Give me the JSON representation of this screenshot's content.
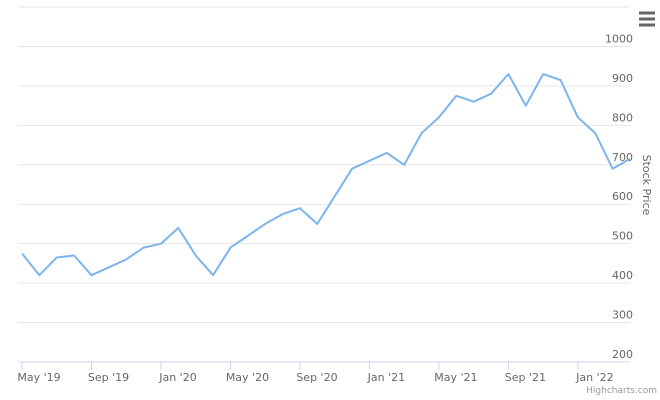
{
  "chart_data": {
    "type": "line",
    "y_axis_title": "Stock Price",
    "credits": "Highcharts.com",
    "x": [
      "2019-05",
      "2019-06",
      "2019-07",
      "2019-08",
      "2019-09",
      "2019-10",
      "2019-11",
      "2019-12",
      "2020-01",
      "2020-02",
      "2020-03",
      "2020-04",
      "2020-05",
      "2020-06",
      "2020-07",
      "2020-08",
      "2020-09",
      "2020-10",
      "2020-11",
      "2020-12",
      "2021-01",
      "2021-02",
      "2021-03",
      "2021-04",
      "2021-05",
      "2021-06",
      "2021-07",
      "2021-08",
      "2021-09",
      "2021-10",
      "2021-11",
      "2021-12",
      "2022-01",
      "2022-02",
      "2022-03",
      "2022-04"
    ],
    "series": [
      {
        "name": "Stock Price",
        "color": "#7cb5ec",
        "values": [
          475,
          420,
          465,
          470,
          420,
          440,
          460,
          490,
          500,
          540,
          470,
          420,
          490,
          520,
          550,
          575,
          590,
          550,
          620,
          690,
          710,
          730,
          700,
          780,
          820,
          875,
          860,
          880,
          930,
          850,
          930,
          915,
          820,
          780,
          690,
          715
        ]
      }
    ],
    "xlim": [
      "2019-05",
      "2022-04"
    ],
    "xticks": [
      {
        "value": "2019-05",
        "label": "May '19"
      },
      {
        "value": "2019-09",
        "label": "Sep '19"
      },
      {
        "value": "2020-01",
        "label": "Jan '20"
      },
      {
        "value": "2020-05",
        "label": "May '20"
      },
      {
        "value": "2020-09",
        "label": "Sep '20"
      },
      {
        "value": "2021-01",
        "label": "Jan '21"
      },
      {
        "value": "2021-05",
        "label": "May '21"
      },
      {
        "value": "2021-09",
        "label": "Sep '21"
      },
      {
        "value": "2022-01",
        "label": "Jan '22"
      }
    ],
    "ylim": [
      200,
      1100
    ],
    "yticks": [
      200,
      300,
      400,
      500,
      600,
      700,
      800,
      900,
      1000
    ],
    "grid": true
  }
}
